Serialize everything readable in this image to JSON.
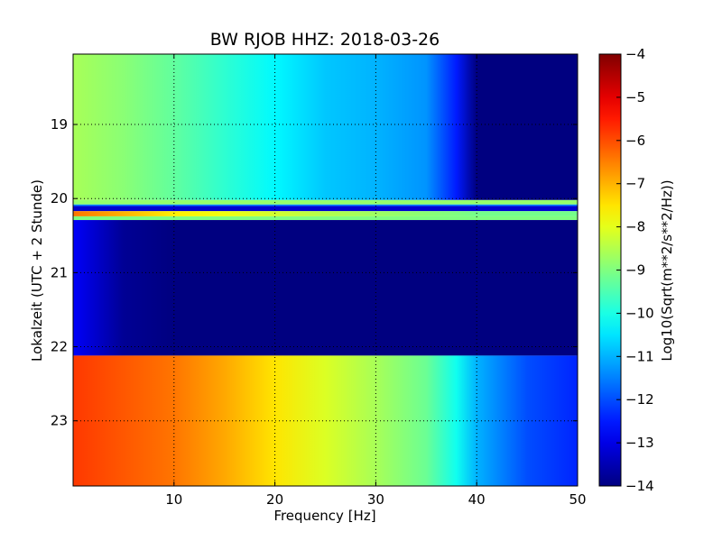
{
  "chart_data": {
    "type": "heatmap",
    "title": "BW RJOB HHZ: 2018-03-26",
    "xlabel": "Frequency [Hz]",
    "ylabel": "Lokalzeit (UTC + 2 Stunde)",
    "colorbar_label": "Log10(Sqrt(m**2/s**2/Hz))",
    "xlim": [
      0,
      50
    ],
    "ylim_hours": [
      18.05,
      23.88
    ],
    "y_inverted": true,
    "x_ticks": [
      10,
      20,
      30,
      40,
      50
    ],
    "x_tick_labels": [
      "10",
      "20",
      "30",
      "40",
      "50"
    ],
    "y_ticks": [
      19,
      20,
      21,
      22,
      23
    ],
    "y_tick_labels": [
      "19",
      "20",
      "21",
      "22",
      "23"
    ],
    "colorbar_range": [
      -14,
      -4
    ],
    "colorbar_ticks": [
      -4,
      -5,
      -6,
      -7,
      -8,
      -9,
      -10,
      -11,
      -12,
      -13,
      -14
    ],
    "colorbar_tick_labels": [
      "−4",
      "−5",
      "−6",
      "−7",
      "−8",
      "−9",
      "−10",
      "−11",
      "−12",
      "−13",
      "−14"
    ],
    "colormap": "jet",
    "grid": true,
    "frequency_profile_hz": [
      0,
      5,
      10,
      15,
      20,
      25,
      30,
      35,
      38,
      40,
      45,
      50
    ],
    "bands": [
      {
        "from": 18.05,
        "to": 20.02,
        "values": [
          -8.6,
          -8.9,
          -9.3,
          -9.8,
          -10.3,
          -10.8,
          -11.0,
          -11.3,
          -12.5,
          -14.0,
          -14.0,
          -14.0
        ]
      },
      {
        "from": 20.02,
        "to": 20.08,
        "values": [
          -8.8,
          -8.8,
          -8.8,
          -8.8,
          -8.8,
          -8.8,
          -8.8,
          -8.8,
          -8.8,
          -8.8,
          -8.8,
          -8.8
        ]
      },
      {
        "from": 20.08,
        "to": 20.1,
        "values": [
          -11.5,
          -11.5,
          -11.5,
          -11.5,
          -11.5,
          -11.5,
          -11.5,
          -11.5,
          -11.5,
          -11.5,
          -11.5,
          -11.5
        ]
      },
      {
        "from": 20.1,
        "to": 20.17,
        "values": [
          -13.2,
          -13.2,
          -13.2,
          -13.2,
          -13.2,
          -13.2,
          -13.2,
          -13.2,
          -13.2,
          -13.2,
          -13.2,
          -13.2
        ]
      },
      {
        "from": 20.17,
        "to": 20.24,
        "values": [
          -6.4,
          -7.0,
          -7.6,
          -7.9,
          -8.2,
          -8.5,
          -8.7,
          -8.9,
          -9.0,
          -9.1,
          -9.1,
          -9.1
        ]
      },
      {
        "from": 20.24,
        "to": 20.29,
        "values": [
          -9.0,
          -9.0,
          -9.0,
          -9.0,
          -9.0,
          -9.0,
          -9.0,
          -9.0,
          -9.0,
          -9.0,
          -9.0,
          -9.0
        ]
      },
      {
        "from": 20.29,
        "to": 22.12,
        "values": [
          -12.8,
          -13.8,
          -14.0,
          -14.0,
          -14.0,
          -14.0,
          -14.0,
          -14.0,
          -14.0,
          -14.0,
          -14.0,
          -14.0
        ]
      },
      {
        "from": 22.12,
        "to": 23.88,
        "values": [
          -5.8,
          -6.1,
          -6.4,
          -6.9,
          -7.5,
          -8.1,
          -8.6,
          -9.2,
          -10.1,
          -11.0,
          -12.0,
          -12.4
        ]
      }
    ]
  }
}
